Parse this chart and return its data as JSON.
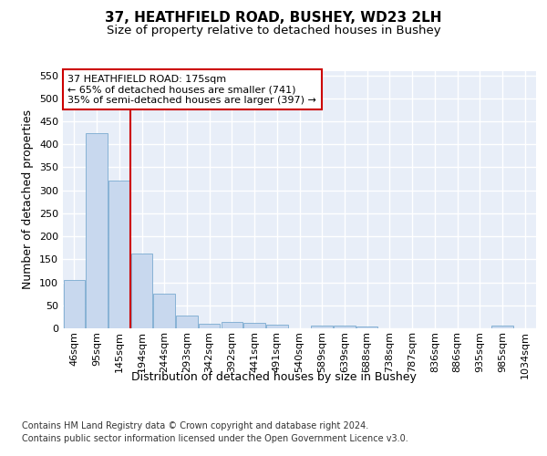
{
  "title": "37, HEATHFIELD ROAD, BUSHEY, WD23 2LH",
  "subtitle": "Size of property relative to detached houses in Bushey",
  "xlabel": "Distribution of detached houses by size in Bushey",
  "ylabel": "Number of detached properties",
  "bar_color": "#c8d8ee",
  "bar_edge_color": "#7aaad0",
  "background_color": "#e8eef8",
  "grid_color": "#ffffff",
  "categories": [
    "46sqm",
    "95sqm",
    "145sqm",
    "194sqm",
    "244sqm",
    "293sqm",
    "342sqm",
    "392sqm",
    "441sqm",
    "491sqm",
    "540sqm",
    "589sqm",
    "639sqm",
    "688sqm",
    "738sqm",
    "787sqm",
    "836sqm",
    "886sqm",
    "935sqm",
    "985sqm",
    "1034sqm"
  ],
  "values": [
    105,
    425,
    322,
    163,
    75,
    27,
    10,
    14,
    11,
    7,
    0,
    5,
    5,
    4,
    0,
    0,
    0,
    0,
    0,
    5,
    0
  ],
  "vline_x": 2.5,
  "vline_color": "#cc0000",
  "annotation_box_text": "37 HEATHFIELD ROAD: 175sqm\n← 65% of detached houses are smaller (741)\n35% of semi-detached houses are larger (397) →",
  "annotation_box_color": "#cc0000",
  "ylim": [
    0,
    560
  ],
  "yticks": [
    0,
    50,
    100,
    150,
    200,
    250,
    300,
    350,
    400,
    450,
    500,
    550
  ],
  "footnote1": "Contains HM Land Registry data © Crown copyright and database right 2024.",
  "footnote2": "Contains public sector information licensed under the Open Government Licence v3.0.",
  "title_fontsize": 11,
  "subtitle_fontsize": 9.5,
  "tick_fontsize": 8,
  "label_fontsize": 9,
  "annotation_fontsize": 8,
  "footnote_fontsize": 7
}
